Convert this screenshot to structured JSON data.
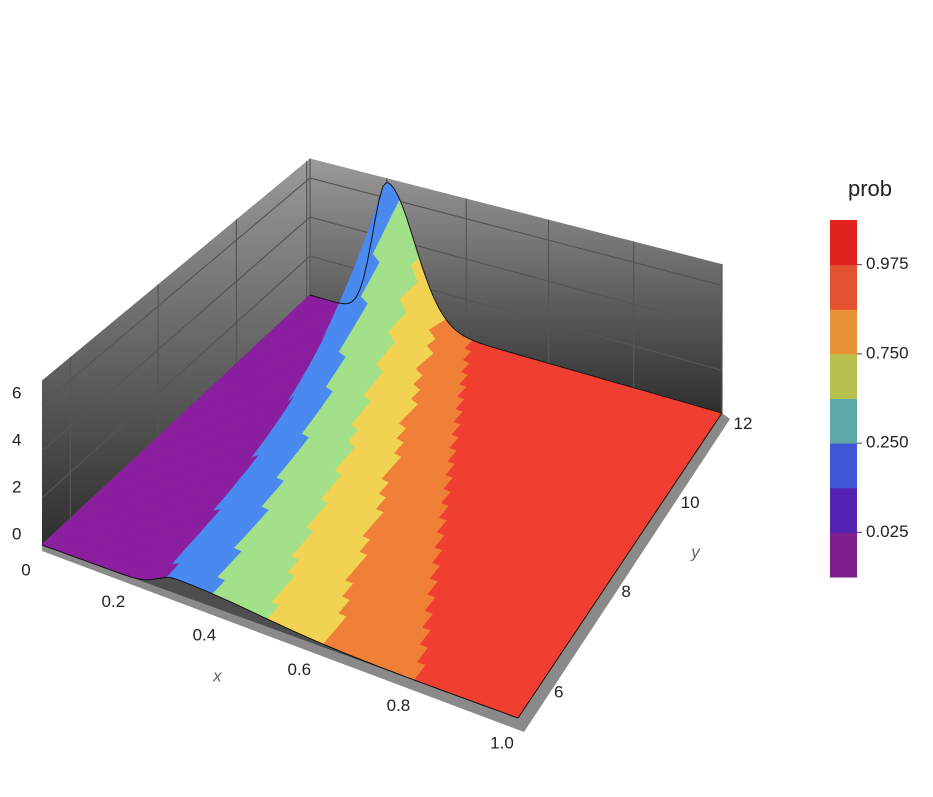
{
  "chart_data": {
    "type": "surface3d",
    "x_label": "x",
    "y_label": "y",
    "xlim": [
      0,
      1
    ],
    "xticks": [
      0,
      0.2,
      0.4,
      0.6,
      0.8,
      {
        "value": 1,
        "label": "1.0"
      }
    ],
    "ylim": [
      5.4,
      12.1
    ],
    "yticks": [
      6,
      8,
      10,
      12
    ],
    "zlim": [
      0,
      7
    ],
    "zticks": [
      0,
      2,
      4,
      6
    ],
    "surface_colors": [
      "#8b1fa0",
      "#4a8af0",
      "#a2e08a",
      "#f2d252",
      "#f08038",
      "#f03f30"
    ],
    "colorbar": {
      "title": "prob",
      "colors": [
        "#7f1f8e",
        "#5523b4",
        "#3f57d6",
        "#5fa8a9",
        "#b5c04e",
        "#e99238",
        "#e35331",
        "#e0231f"
      ],
      "ticks": [
        0.025,
        {
          "value": 0.25,
          "label": "0.250"
        },
        {
          "value": 0.75,
          "label": "0.750"
        },
        0.975
      ]
    }
  }
}
